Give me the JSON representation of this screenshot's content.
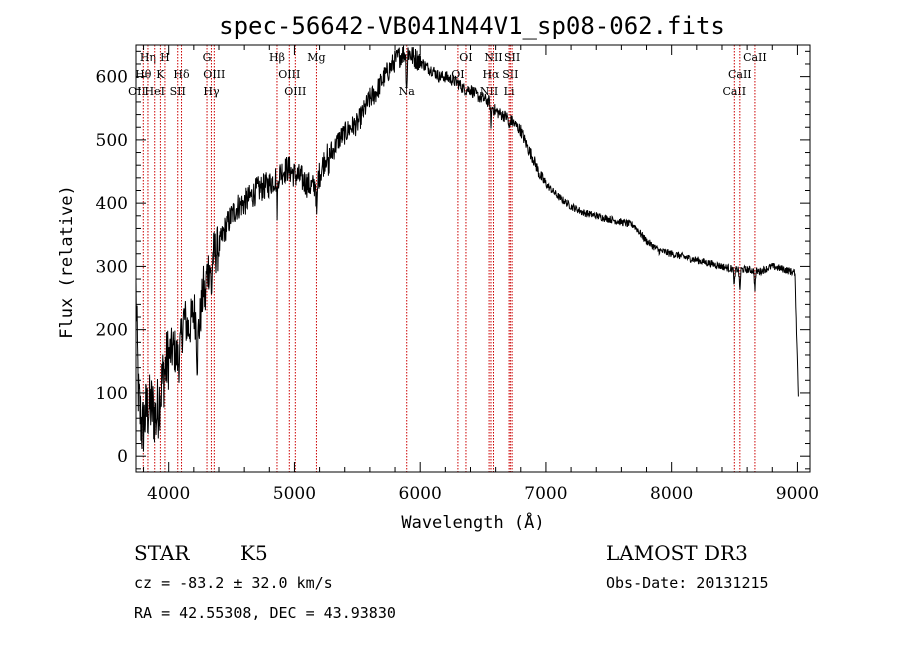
{
  "chart_data": {
    "type": "line",
    "title": "spec-56642-VB041N44V1_sp08-062.fits",
    "xlabel": "Wavelength (Å)",
    "ylabel": "Flux (relative)",
    "xlim": [
      3740,
      9100
    ],
    "ylim": [
      -25,
      650
    ],
    "x_ticks": [
      4000,
      5000,
      6000,
      7000,
      8000,
      9000
    ],
    "x_tick_labels": [
      "4000",
      "5000",
      "6000",
      "7000",
      "8000",
      "9000"
    ],
    "y_ticks": [
      0,
      100,
      200,
      300,
      400,
      500,
      600
    ],
    "y_tick_labels": [
      "0",
      "100",
      "200",
      "300",
      "400",
      "500",
      "600"
    ],
    "spectrum_anchors": [
      [
        3740,
        260
      ],
      [
        3760,
        90
      ],
      [
        3790,
        40
      ],
      [
        3820,
        70
      ],
      [
        3860,
        80
      ],
      [
        3900,
        60
      ],
      [
        3950,
        120
      ],
      [
        4000,
        160
      ],
      [
        4040,
        170
      ],
      [
        4080,
        150
      ],
      [
        4120,
        220
      ],
      [
        4160,
        200
      ],
      [
        4200,
        230
      ],
      [
        4240,
        200
      ],
      [
        4280,
        270
      ],
      [
        4320,
        300
      ],
      [
        4360,
        320
      ],
      [
        4400,
        330
      ],
      [
        4450,
        360
      ],
      [
        4500,
        380
      ],
      [
        4550,
        395
      ],
      [
        4600,
        400
      ],
      [
        4650,
        410
      ],
      [
        4700,
        420
      ],
      [
        4750,
        425
      ],
      [
        4800,
        430
      ],
      [
        4850,
        440
      ],
      [
        4900,
        450
      ],
      [
        4950,
        455
      ],
      [
        5000,
        445
      ],
      [
        5050,
        440
      ],
      [
        5100,
        430
      ],
      [
        5150,
        425
      ],
      [
        5200,
        445
      ],
      [
        5250,
        475
      ],
      [
        5300,
        480
      ],
      [
        5350,
        500
      ],
      [
        5400,
        510
      ],
      [
        5450,
        520
      ],
      [
        5500,
        525
      ],
      [
        5550,
        545
      ],
      [
        5600,
        565
      ],
      [
        5650,
        575
      ],
      [
        5700,
        595
      ],
      [
        5750,
        610
      ],
      [
        5800,
        625
      ],
      [
        5850,
        635
      ],
      [
        5900,
        640
      ],
      [
        5950,
        630
      ],
      [
        6000,
        625
      ],
      [
        6050,
        615
      ],
      [
        6100,
        610
      ],
      [
        6150,
        600
      ],
      [
        6200,
        600
      ],
      [
        6250,
        595
      ],
      [
        6300,
        590
      ],
      [
        6350,
        580
      ],
      [
        6400,
        580
      ],
      [
        6450,
        570
      ],
      [
        6500,
        565
      ],
      [
        6550,
        560
      ],
      [
        6600,
        545
      ],
      [
        6650,
        540
      ],
      [
        6700,
        535
      ],
      [
        6750,
        525
      ],
      [
        6800,
        515
      ],
      [
        6850,
        490
      ],
      [
        6900,
        470
      ],
      [
        6950,
        445
      ],
      [
        7000,
        430
      ],
      [
        7050,
        420
      ],
      [
        7100,
        410
      ],
      [
        7200,
        395
      ],
      [
        7300,
        385
      ],
      [
        7400,
        380
      ],
      [
        7500,
        375
      ],
      [
        7600,
        370
      ],
      [
        7700,
        365
      ],
      [
        7800,
        340
      ],
      [
        7900,
        325
      ],
      [
        8000,
        320
      ],
      [
        8100,
        315
      ],
      [
        8200,
        310
      ],
      [
        8300,
        305
      ],
      [
        8400,
        300
      ],
      [
        8500,
        295
      ],
      [
        8600,
        295
      ],
      [
        8700,
        292
      ],
      [
        8800,
        300
      ],
      [
        8900,
        295
      ],
      [
        8980,
        290
      ],
      [
        9010,
        80
      ]
    ],
    "absorption_dips": [
      [
        4227,
        60
      ],
      [
        4290,
        40
      ],
      [
        4340,
        60
      ],
      [
        4862,
        50
      ],
      [
        5178,
        60
      ],
      [
        5270,
        30
      ],
      [
        5893,
        60
      ],
      [
        6563,
        30
      ],
      [
        6707,
        20
      ],
      [
        8498,
        25
      ],
      [
        8542,
        35
      ],
      [
        8662,
        30
      ]
    ],
    "spectral_lines": [
      {
        "wavelength": 3727,
        "label": "OII",
        "row": 3
      },
      {
        "wavelength": 3798,
        "label": "Hθ",
        "row": 2
      },
      {
        "wavelength": 3835,
        "label": "Hη",
        "row": 1
      },
      {
        "wavelength": 3889,
        "label": "HeI",
        "row": 3
      },
      {
        "wavelength": 3934,
        "label": "K",
        "row": 2
      },
      {
        "wavelength": 3970,
        "label": "H",
        "row": 1
      },
      {
        "wavelength": 4072,
        "label": "SII",
        "row": 3
      },
      {
        "wavelength": 4102,
        "label": "Hδ",
        "row": 2
      },
      {
        "wavelength": 4305,
        "label": "G",
        "row": 1
      },
      {
        "wavelength": 4340,
        "label": "Hγ",
        "row": 3
      },
      {
        "wavelength": 4363,
        "label": "OIII",
        "row": 2
      },
      {
        "wavelength": 4861,
        "label": "Hβ",
        "row": 1
      },
      {
        "wavelength": 4959,
        "label": "OIII",
        "row": 2
      },
      {
        "wavelength": 5007,
        "label": "OIII",
        "row": 3
      },
      {
        "wavelength": 5175,
        "label": "Mg",
        "row": 1
      },
      {
        "wavelength": 5893,
        "label": "Na",
        "row": 3
      },
      {
        "wavelength": 6300,
        "label": "OI",
        "row": 2
      },
      {
        "wavelength": 6364,
        "label": "OI",
        "row": 1
      },
      {
        "wavelength": 6548,
        "label": "NII",
        "row": 3
      },
      {
        "wavelength": 6563,
        "label": "Hα",
        "row": 2
      },
      {
        "wavelength": 6583,
        "label": "NII",
        "row": 1
      },
      {
        "wavelength": 6707,
        "label": "Li",
        "row": 3
      },
      {
        "wavelength": 6717,
        "label": "SII",
        "row": 2
      },
      {
        "wavelength": 6731,
        "label": "SII",
        "row": 1
      },
      {
        "wavelength": 8498,
        "label": "CaII",
        "row": 3
      },
      {
        "wavelength": 8542,
        "label": "CaII",
        "row": 2
      },
      {
        "wavelength": 8662,
        "label": "CaII",
        "row": 1
      }
    ],
    "line_marker_color": "#cc0000",
    "line_color": "#000000"
  },
  "info": {
    "object_class": "STAR",
    "subclass": "K5",
    "survey": "LAMOST DR3",
    "cz": "cz = -83.2 ± 32.0 km/s",
    "obs_date": "Obs-Date: 20131215",
    "coords": "RA =  42.55308, DEC =  43.93830"
  }
}
